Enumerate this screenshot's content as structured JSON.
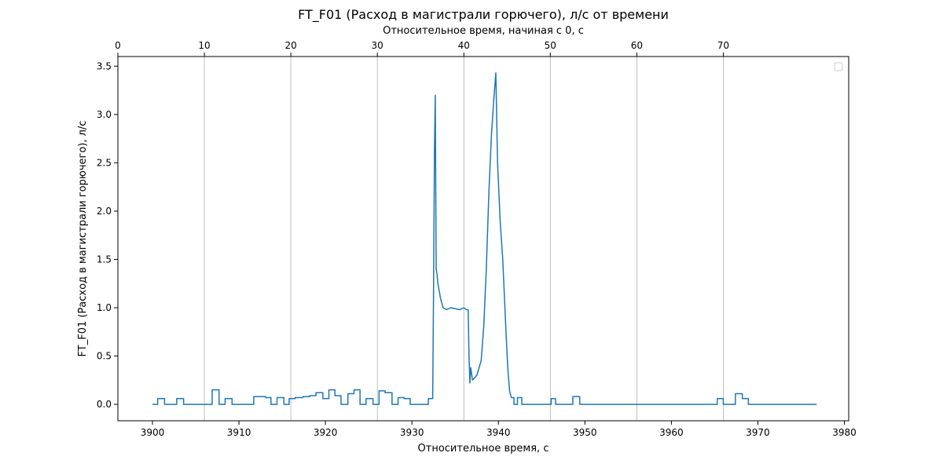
{
  "chart_data": {
    "type": "line",
    "title": "FT_F01 (Расход  в магистрали горючего), л/с от времени",
    "xlabel": "Относительное время, с",
    "ylabel": "FT_F01 (Расход  в магистрали горючего), л/с",
    "x2label": "Относительное время, начиная с 0, с",
    "xlim": [
      3896.0,
      3980.5
    ],
    "ylim": [
      -0.17,
      3.6
    ],
    "x_ticks": [
      3900,
      3910,
      3920,
      3930,
      3940,
      3950,
      3960,
      3970,
      3980
    ],
    "y_ticks": [
      0.0,
      0.5,
      1.0,
      1.5,
      2.0,
      2.5,
      3.0,
      3.5
    ],
    "x2_offset": 3896.0,
    "x2_ticks": [
      0,
      10,
      20,
      30,
      40,
      50,
      60,
      70
    ],
    "grid": "vertical lines at top-axis ticks",
    "legend": "upper right, empty",
    "color": "#1f77b4",
    "series": [
      {
        "x": [
          3900.0,
          3900.6,
          3900.6,
          3901.4,
          3901.4,
          3902.8,
          3902.8,
          3903.6,
          3903.6,
          3906.9,
          3906.9,
          3907.7,
          3907.7,
          3908.4,
          3908.4,
          3909.2,
          3909.2,
          3911.7,
          3911.7,
          3913.1,
          3913.1,
          3913.7,
          3913.7,
          3914.4,
          3914.4,
          3915.2,
          3915.2,
          3915.8,
          3915.8,
          3916.5,
          3916.5,
          3917.4,
          3917.4,
          3918.2,
          3918.2,
          3918.9,
          3918.9,
          3919.7,
          3919.7,
          3920.4,
          3920.4,
          3921.1,
          3921.1,
          3921.8,
          3921.8,
          3922.6,
          3922.6,
          3923.3,
          3923.3,
          3924.0,
          3924.0,
          3924.7,
          3924.7,
          3925.5,
          3925.5,
          3926.2,
          3926.2,
          3926.9,
          3926.9,
          3927.7,
          3927.7,
          3928.4,
          3928.4,
          3929.1,
          3929.1,
          3929.8,
          3929.8,
          3931.9,
          3931.9,
          3932.4,
          3932.5,
          3932.6,
          3932.7,
          3932.8,
          3932.9,
          3933.0,
          3933.3,
          3933.6,
          3934.0,
          3934.5,
          3935.0,
          3935.5,
          3936.0,
          3936.3,
          3936.5,
          3936.6,
          3936.7,
          3936.8,
          3937.0,
          3937.5,
          3938.0,
          3938.3,
          3938.6,
          3938.9,
          3939.2,
          3939.5,
          3939.7,
          3939.9,
          3940.2,
          3940.5,
          3940.7,
          3940.9,
          3941.1,
          3941.3,
          3941.5,
          3941.8,
          3941.8,
          3942.2,
          3942.2,
          3942.7,
          3942.7,
          3946.1,
          3946.1,
          3946.6,
          3946.6,
          3948.6,
          3948.6,
          3949.4,
          3949.4,
          3965.3,
          3965.3,
          3966.0,
          3966.0,
          3967.4,
          3967.4,
          3968.2,
          3968.2,
          3968.9,
          3968.9,
          3970.0,
          3976.8
        ],
        "y": [
          0.0,
          0.0,
          0.06,
          0.06,
          0.0,
          0.0,
          0.06,
          0.06,
          0.0,
          0.0,
          0.15,
          0.15,
          0.0,
          0.0,
          0.06,
          0.06,
          0.0,
          0.0,
          0.08,
          0.08,
          0.07,
          0.07,
          0.0,
          0.0,
          0.07,
          0.07,
          0.0,
          0.0,
          0.06,
          0.06,
          0.07,
          0.07,
          0.08,
          0.08,
          0.09,
          0.09,
          0.12,
          0.12,
          0.06,
          0.06,
          0.15,
          0.15,
          0.09,
          0.09,
          0.0,
          0.0,
          0.11,
          0.11,
          0.15,
          0.15,
          0.0,
          0.0,
          0.06,
          0.06,
          0.0,
          0.0,
          0.14,
          0.14,
          0.12,
          0.12,
          0.0,
          0.0,
          0.07,
          0.07,
          0.06,
          0.06,
          0.0,
          0.0,
          0.06,
          0.06,
          1.2,
          2.6,
          3.2,
          1.4,
          1.35,
          1.25,
          1.1,
          1.0,
          0.98,
          1.0,
          0.99,
          0.98,
          1.0,
          0.98,
          0.98,
          0.5,
          0.22,
          0.38,
          0.25,
          0.3,
          0.45,
          0.8,
          1.4,
          2.2,
          2.8,
          3.2,
          3.43,
          2.5,
          1.9,
          1.5,
          1.1,
          0.7,
          0.35,
          0.13,
          0.07,
          0.07,
          0.0,
          0.0,
          0.07,
          0.07,
          0.0,
          0.0,
          0.06,
          0.06,
          0.0,
          0.0,
          0.08,
          0.08,
          0.0,
          0.0,
          0.06,
          0.06,
          0.0,
          0.0,
          0.11,
          0.11,
          0.06,
          0.06,
          0.0,
          0.0,
          0.0
        ]
      }
    ]
  }
}
